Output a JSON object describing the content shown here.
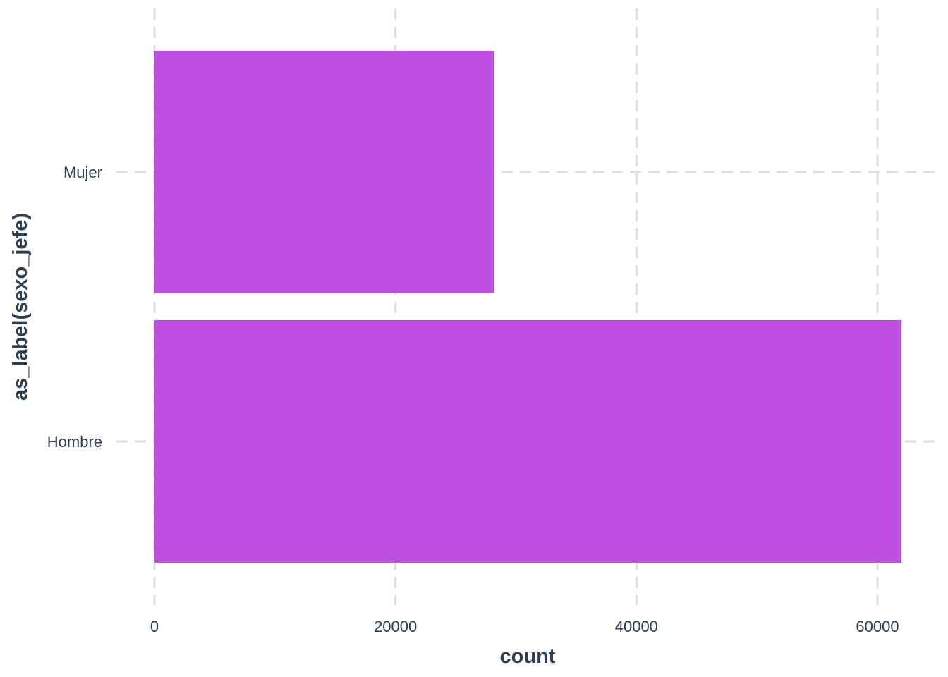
{
  "chart_data": {
    "type": "bar",
    "orientation": "horizontal",
    "categories": [
      "Mujer",
      "Hombre"
    ],
    "values": [
      28200,
      62000
    ],
    "xlabel": "count",
    "ylabel": "as_label(sexo_jefe)",
    "xlim": [
      0,
      64800
    ],
    "x_ticks": [
      0,
      20000,
      40000,
      60000
    ],
    "x_tick_labels": [
      "0",
      "20000",
      "40000",
      "60000"
    ],
    "grid": true,
    "legend": "none",
    "colors": {
      "bar": "#bf4fe0",
      "grid": "#dddddd",
      "text": "#2c3e50"
    }
  }
}
